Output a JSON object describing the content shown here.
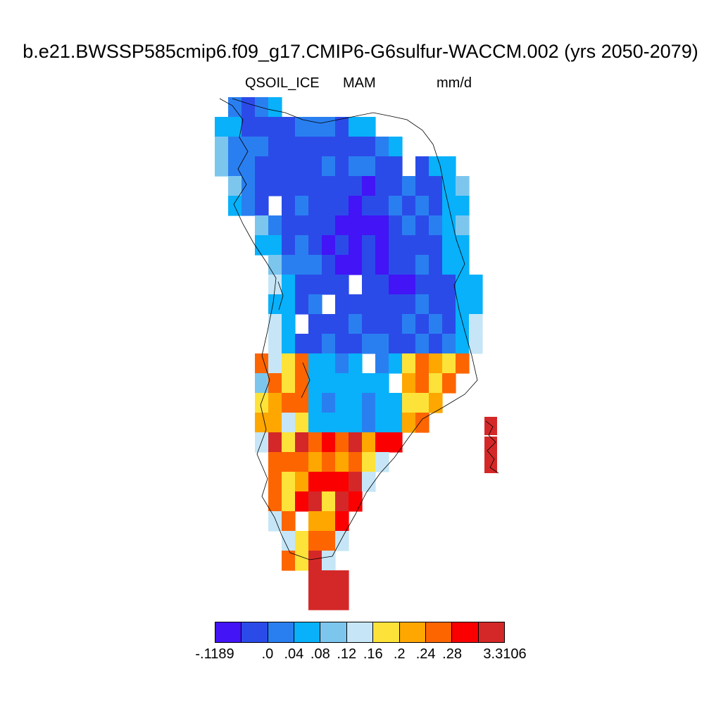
{
  "title": "b.e21.BWSSP585cmip6.f09_g17.CMIP6-G6sulfur-WACCM.002 (yrs 2050-2079)",
  "subtitle": {
    "variable": "QSOIL_ICE",
    "season": "MAM",
    "units": "mm/d"
  },
  "legend": {
    "colors": [
      "#4214f6",
      "#2b4be8",
      "#2a7ff0",
      "#08b1fa",
      "#7cc6ee",
      "#c6e6f7",
      "#fde23a",
      "#fda700",
      "#fd6500",
      "#fa0000",
      "#d42828"
    ],
    "labels": [
      {
        "text": "-.1189",
        "boundary": 0
      },
      {
        "text": ".0",
        "boundary": 2
      },
      {
        "text": ".04",
        "boundary": 3
      },
      {
        "text": ".08",
        "boundary": 4
      },
      {
        "text": ".12",
        "boundary": 5
      },
      {
        "text": ".16",
        "boundary": 6
      },
      {
        "text": ".2",
        "boundary": 7
      },
      {
        "text": ".24",
        "boundary": 8
      },
      {
        "text": ".28",
        "boundary": 9
      },
      {
        "text": "3.3106",
        "boundary": 11
      }
    ]
  }
}
